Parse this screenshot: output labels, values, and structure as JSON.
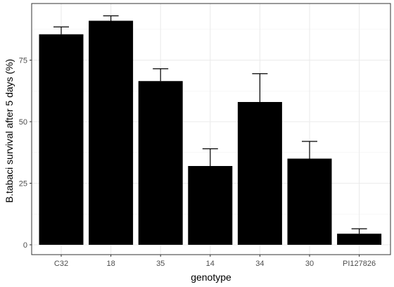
{
  "chart_data": {
    "type": "bar",
    "title": "",
    "xlabel": "genotype",
    "ylabel": "B.tabaci survival after 5 days (%)",
    "categories": [
      "C32",
      "18",
      "35",
      "14",
      "34",
      "30",
      "PI127826"
    ],
    "values": [
      85.5,
      91.0,
      66.5,
      32.0,
      58.0,
      35.0,
      4.5
    ],
    "error_upper": [
      88.5,
      93.0,
      71.5,
      39.0,
      69.5,
      42.0,
      6.5
    ],
    "ylim": [
      0,
      100
    ],
    "yticks": [
      0,
      25,
      50,
      75
    ],
    "bar_color": "#000000",
    "grid": true,
    "legend": "none"
  }
}
